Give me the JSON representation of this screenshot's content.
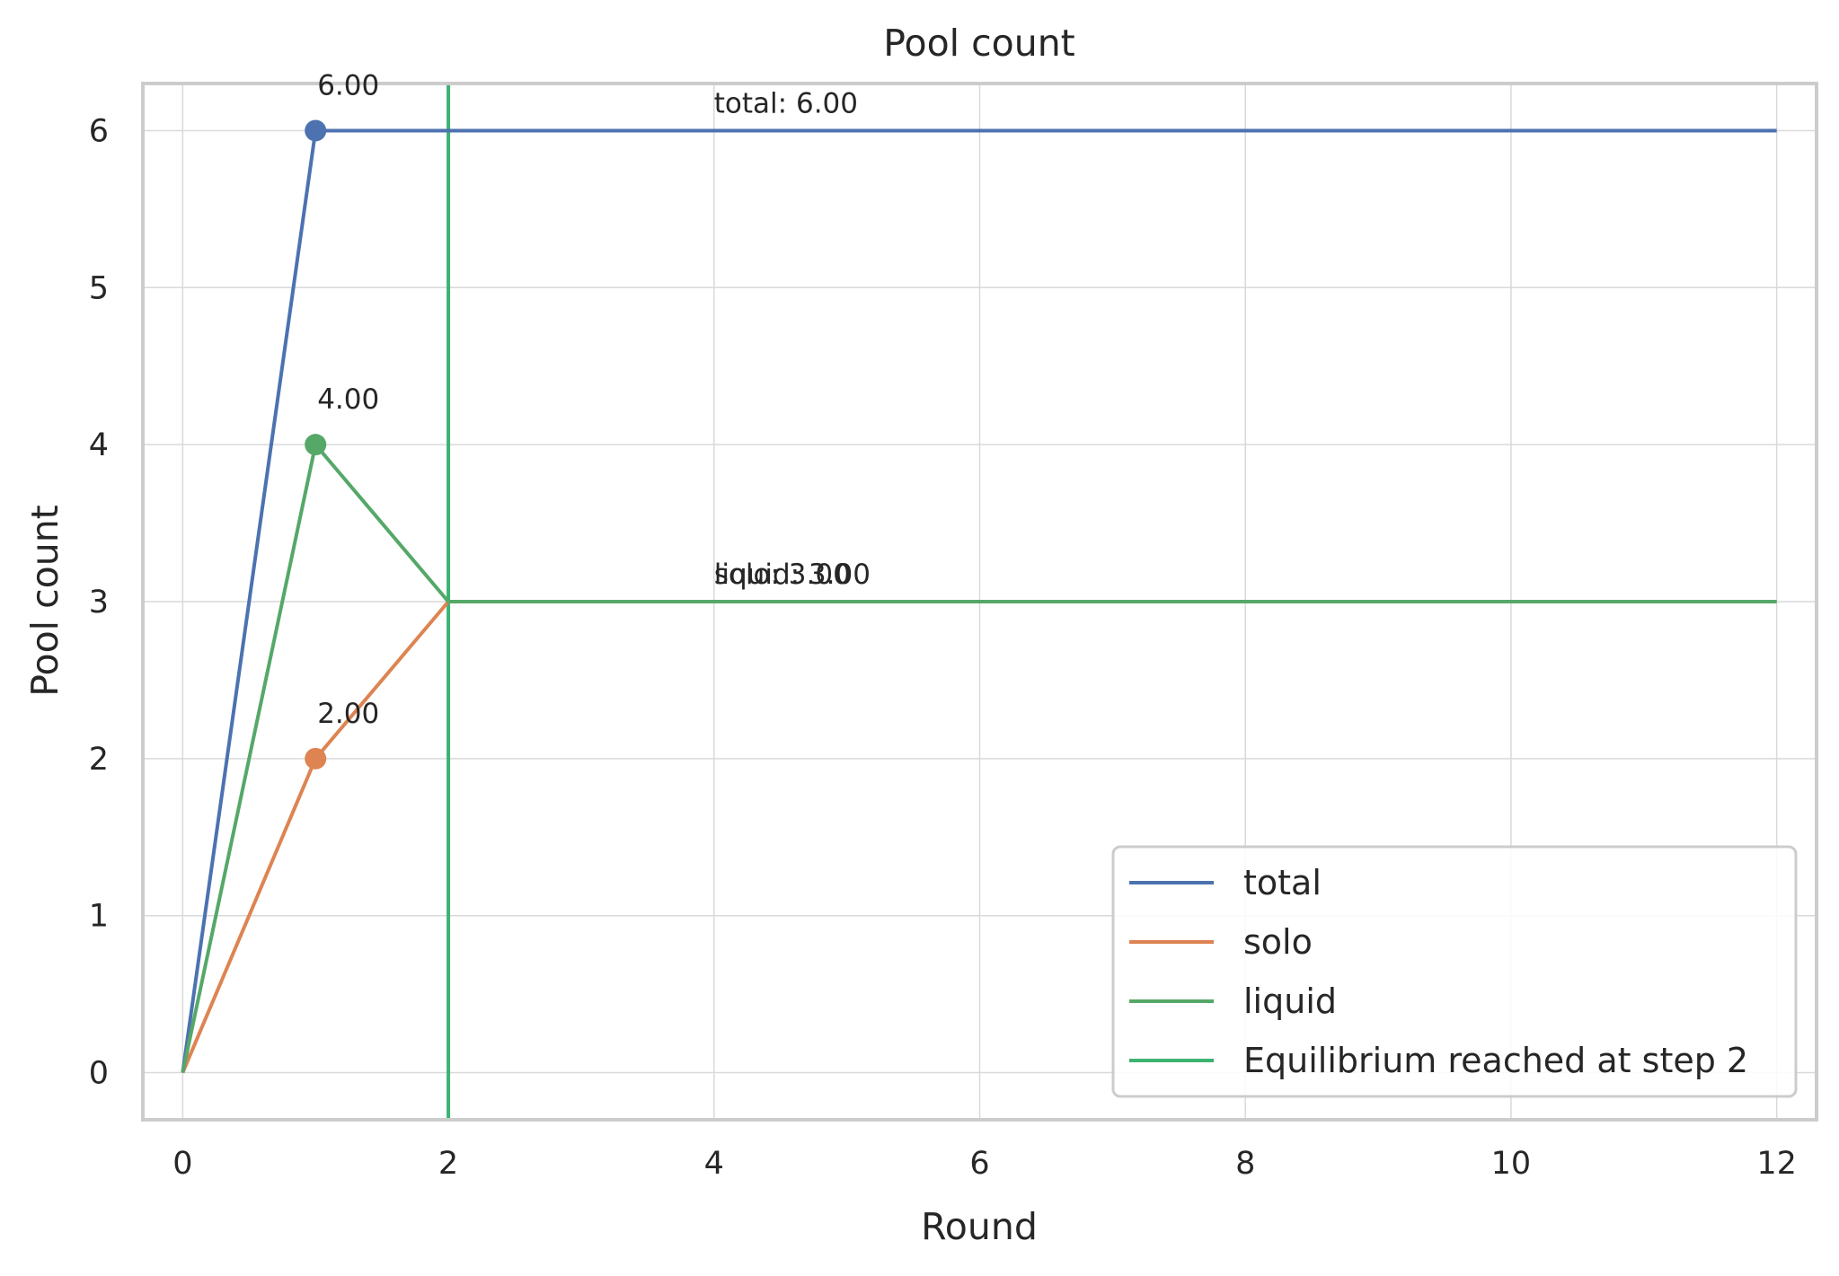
{
  "chart_data": {
    "type": "line",
    "title": "Pool count",
    "xlabel": "Round",
    "ylabel": "Pool count",
    "xlim": [
      -0.3,
      12.3
    ],
    "ylim": [
      -0.3,
      6.3
    ],
    "xticks": [
      0,
      2,
      4,
      6,
      8,
      10,
      12
    ],
    "yticks": [
      0,
      1,
      2,
      3,
      4,
      5,
      6
    ],
    "grid": true,
    "legend_position": "lower-right",
    "x": [
      0,
      1,
      2,
      3,
      4,
      5,
      6,
      7,
      8,
      9,
      10,
      11,
      12
    ],
    "series": [
      {
        "name": "total",
        "color": "#4c72b0",
        "values": [
          0,
          6,
          6,
          6,
          6,
          6,
          6,
          6,
          6,
          6,
          6,
          6,
          6
        ]
      },
      {
        "name": "solo",
        "color": "#dd8452",
        "values": [
          0,
          2,
          3,
          3,
          3,
          3,
          3,
          3,
          3,
          3,
          3,
          3,
          3
        ]
      },
      {
        "name": "liquid",
        "color": "#55a868",
        "values": [
          0,
          4,
          3,
          3,
          3,
          3,
          3,
          3,
          3,
          3,
          3,
          3,
          3
        ]
      }
    ],
    "markers": [
      {
        "series": "total",
        "x": 1,
        "y": 6,
        "label": "6.00"
      },
      {
        "series": "liquid",
        "x": 1,
        "y": 4,
        "label": "4.00"
      },
      {
        "series": "solo",
        "x": 1,
        "y": 2,
        "label": "2.00"
      }
    ],
    "end_annotations": [
      {
        "text": "total: 6.00",
        "x": 4,
        "y": 6
      },
      {
        "text": "solo: 3.00",
        "x": 4,
        "y": 3
      },
      {
        "text": "liquid: 3.00",
        "x": 4,
        "y": 3
      }
    ],
    "vline": {
      "x": 2,
      "color": "#3cb371",
      "label": "Equilibrium reached at step 2"
    }
  }
}
